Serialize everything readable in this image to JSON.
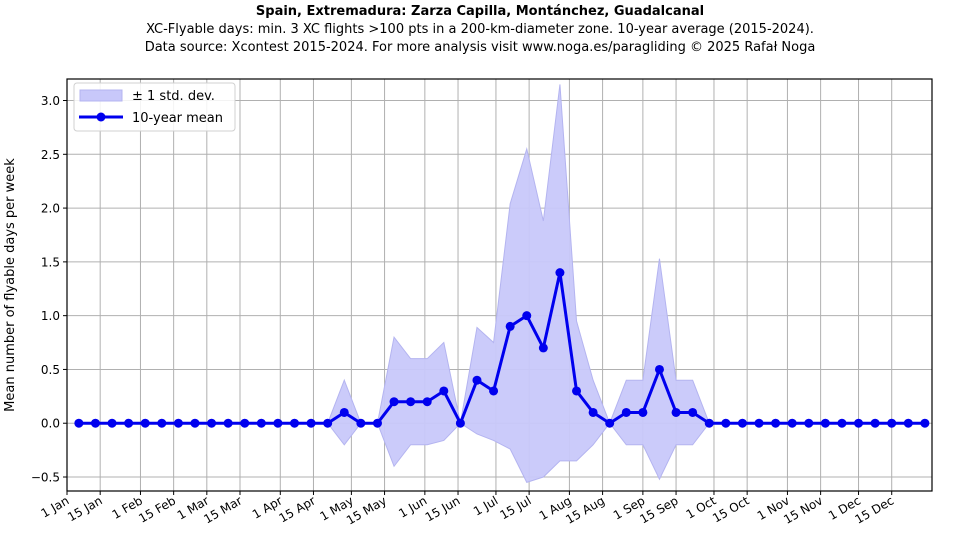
{
  "title": {
    "main": "Spain, Extremadura: Zarza Capilla, Montánchez, Guadalcanal",
    "line2": "XC-Flyable days: min. 3 XC flights >100 pts in a 200-km-diameter zone. 10-year average (2015-2024).",
    "line3": "Data source: Xcontest 2015-2024. For more analysis visit www.noga.es/paragliding © 2025 Rafał Noga"
  },
  "legend": {
    "band_label": "± 1 std. dev.",
    "line_label": "10-year mean"
  },
  "colors": {
    "line": "#0000ee",
    "band_fill": "#c8c8fa",
    "band_edge": "#b4b4f0",
    "grid": "#b0b0b0"
  },
  "chart_data": {
    "type": "line",
    "title": "Spain, Extremadura: Zarza Capilla, Montánchez, Guadalcanal",
    "xlabel": "",
    "ylabel": "Mean number of flyable days per week",
    "ylim": [
      -0.63,
      3.2
    ],
    "xlim_days": [
      0,
      365
    ],
    "grid": true,
    "legend_position": "upper left",
    "x_tick_labels": [
      "1 Jan",
      "15 Jan",
      "1 Feb",
      "15 Feb",
      "1 Mar",
      "15 Mar",
      "1 Apr",
      "15 Apr",
      "1 May",
      "15 May",
      "1 Jun",
      "15 Jun",
      "1 Jul",
      "15 Jul",
      "1 Aug",
      "15 Aug",
      "1 Sep",
      "15 Sep",
      "1 Oct",
      "15 Oct",
      "1 Nov",
      "15 Nov",
      "1 Dec",
      "15 Dec"
    ],
    "x_tick_days": [
      0,
      14,
      31,
      45,
      59,
      73,
      90,
      104,
      120,
      134,
      151,
      165,
      181,
      195,
      212,
      226,
      243,
      257,
      273,
      287,
      304,
      318,
      334,
      348
    ],
    "y_ticks": [
      -0.5,
      0.0,
      0.5,
      1.0,
      1.5,
      2.0,
      2.5,
      3.0
    ],
    "y_tick_labels": [
      "−0.5",
      "0.0",
      "0.5",
      "1.0",
      "1.5",
      "2.0",
      "2.5",
      "3.0"
    ],
    "week_start_day": 5,
    "week_step_days": 7,
    "series": [
      {
        "name": "10-year mean",
        "values": [
          0,
          0,
          0,
          0,
          0,
          0,
          0,
          0,
          0,
          0,
          0,
          0,
          0,
          0,
          0,
          0,
          0.1,
          0,
          0,
          0.2,
          0.2,
          0.2,
          0.3,
          0,
          0.4,
          0.3,
          0.9,
          1.0,
          0.7,
          1.4,
          0.3,
          0.1,
          0,
          0.1,
          0.1,
          0.5,
          0.1,
          0.1,
          0,
          0,
          0,
          0,
          0,
          0,
          0,
          0,
          0,
          0,
          0,
          0,
          0,
          0
        ]
      },
      {
        "name": "± 1 std. dev. (upper)",
        "values": [
          0,
          0,
          0,
          0,
          0,
          0,
          0,
          0,
          0,
          0,
          0,
          0,
          0,
          0,
          0,
          0,
          0.4,
          0,
          0,
          0.8,
          0.6,
          0.6,
          0.75,
          0,
          0.89,
          0.75,
          2.04,
          2.55,
          1.88,
          3.15,
          0.95,
          0.4,
          0,
          0.4,
          0.4,
          1.53,
          0.4,
          0.4,
          0,
          0,
          0,
          0,
          0,
          0,
          0,
          0,
          0,
          0,
          0,
          0,
          0,
          0
        ]
      },
      {
        "name": "± 1 std. dev. (lower)",
        "values": [
          0,
          0,
          0,
          0,
          0,
          0,
          0,
          0,
          0,
          0,
          0,
          0,
          0,
          0,
          0,
          0,
          -0.2,
          0,
          0,
          -0.4,
          -0.2,
          -0.2,
          -0.16,
          0,
          -0.1,
          -0.16,
          -0.24,
          -0.55,
          -0.5,
          -0.35,
          -0.35,
          -0.2,
          0,
          -0.2,
          -0.2,
          -0.52,
          -0.2,
          -0.2,
          0,
          0,
          0,
          0,
          0,
          0,
          0,
          0,
          0,
          0,
          0,
          0,
          0,
          0
        ]
      }
    ]
  }
}
